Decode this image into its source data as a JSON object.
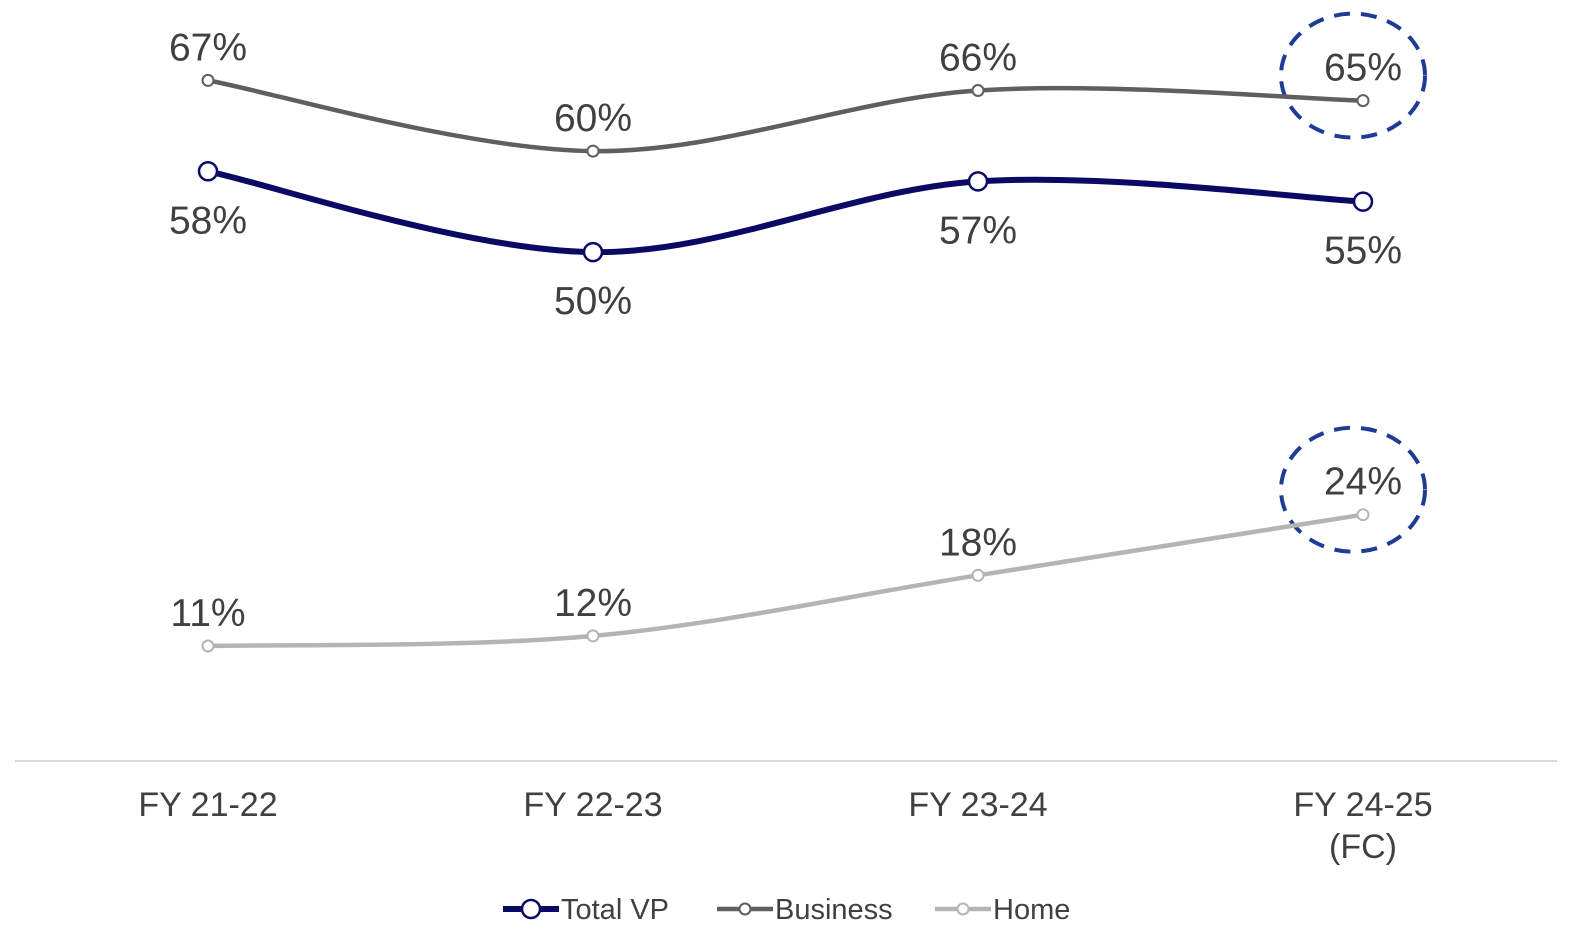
{
  "chart_data": {
    "type": "line",
    "categories": [
      [
        "FY 21-22"
      ],
      [
        "FY 22-23"
      ],
      [
        "FY 23-24"
      ],
      [
        "FY 24-25",
        "(FC)"
      ]
    ],
    "series": [
      {
        "name": "Total VP",
        "values": [
          58,
          50,
          57,
          55
        ],
        "labels": [
          "58%",
          "50%",
          "57%",
          "55%"
        ],
        "color": "#0a0a64",
        "label_position": "below"
      },
      {
        "name": "Business",
        "values": [
          67,
          60,
          66,
          65
        ],
        "labels": [
          "67%",
          "60%",
          "66%",
          "65%"
        ],
        "color": "#5f5f5f",
        "label_position": "above"
      },
      {
        "name": "Home",
        "values": [
          11,
          12,
          18,
          24
        ],
        "labels": [
          "11%",
          "12%",
          "18%",
          "24%"
        ],
        "color": "#b4b4b4",
        "label_position": "above"
      }
    ],
    "highlighted": [
      {
        "series": "Business",
        "category_index": 3
      },
      {
        "series": "Home",
        "category_index": 3
      }
    ],
    "highlight_color": "#1e3c96",
    "legend_position": "bottom",
    "grid": false
  }
}
